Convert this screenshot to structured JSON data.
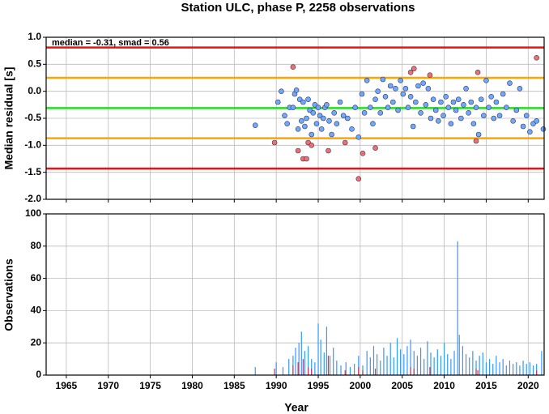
{
  "chart_data": [
    {
      "type": "scatter",
      "title": "Station ULC, phase P, 2258 observations",
      "annotation": "median = -0.31, smad = 0.56",
      "y_label": "Median residual [s]",
      "xlim": [
        1962.6,
        2021.9
      ],
      "xticks": [
        1965,
        1970,
        1975,
        1980,
        1985,
        1990,
        1995,
        2000,
        2005,
        2010,
        2015,
        2020
      ],
      "ylim": [
        -2,
        1
      ],
      "yticks": [
        {
          "value": 1,
          "label": "1.0"
        },
        {
          "value": 0.5,
          "label": "0.5"
        },
        {
          "value": 0,
          "label": "0.0"
        },
        {
          "value": -0.5,
          "label": "-0.5"
        },
        {
          "value": -1,
          "label": "-1.0"
        },
        {
          "value": -1.5,
          "label": "-1.5"
        },
        {
          "value": -2,
          "label": "-2.0"
        }
      ],
      "grid": true,
      "hlines": [
        {
          "value": 0.81,
          "color": "#ee1111"
        },
        {
          "value": 0.25,
          "color": "#ffa500"
        },
        {
          "value": -0.31,
          "color": "#22dd22"
        },
        {
          "value": -0.87,
          "color": "#ffa500"
        },
        {
          "value": -1.43,
          "color": "#ee1111"
        }
      ],
      "series": [
        {
          "color": "#6fa8ff",
          "x": [
            1987.5,
            1990.2,
            1990.6,
            1991.0,
            1991.3,
            1991.6,
            1992.0,
            1992.2,
            1992.4,
            1992.6,
            1992.8,
            1993.0,
            1993.2,
            1993.4,
            1993.6,
            1993.8,
            1994.0,
            1994.2,
            1994.4,
            1994.6,
            1994.8,
            1995.0,
            1995.2,
            1995.4,
            1995.6,
            1995.8,
            1996.0,
            1996.3,
            1996.6,
            1996.9,
            1997.2,
            1997.6,
            1998.0,
            1998.5,
            1999.0,
            1999.4,
            1999.8,
            2000.2,
            2000.5,
            2000.8,
            2001.2,
            2001.5,
            2001.8,
            2002.1,
            2002.4,
            2002.7,
            2003.0,
            2003.3,
            2003.6,
            2003.9,
            2004.2,
            2004.5,
            2004.8,
            2005.1,
            2005.4,
            2005.7,
            2006.0,
            2006.3,
            2006.6,
            2006.9,
            2007.2,
            2007.5,
            2007.8,
            2008.1,
            2008.4,
            2008.7,
            2009.0,
            2009.3,
            2009.6,
            2009.9,
            2010.2,
            2010.5,
            2010.8,
            2011.1,
            2011.4,
            2011.7,
            2012.0,
            2012.3,
            2012.6,
            2012.9,
            2013.2,
            2013.5,
            2013.8,
            2014.1,
            2014.4,
            2014.7,
            2015.0,
            2015.3,
            2015.6,
            2015.9,
            2016.2,
            2016.6,
            2017.0,
            2017.4,
            2017.8,
            2018.2,
            2018.6,
            2019.0,
            2019.4,
            2019.8,
            2020.2,
            2020.6,
            2021.0,
            2021.8
          ],
          "values": [
            -0.63,
            -0.2,
            0.0,
            -0.45,
            -0.6,
            -0.3,
            -0.3,
            -0.05,
            0.02,
            -0.7,
            -0.15,
            -0.55,
            -0.2,
            -0.65,
            -0.5,
            -0.15,
            -0.35,
            -0.8,
            -0.4,
            -0.25,
            -0.6,
            -0.3,
            -0.45,
            -0.7,
            -0.5,
            -0.3,
            -0.25,
            -0.55,
            -0.8,
            -0.4,
            -0.6,
            -0.2,
            -0.45,
            -0.5,
            -0.7,
            -0.3,
            -0.85,
            -0.05,
            -0.4,
            0.2,
            -0.3,
            -0.6,
            -0.15,
            0.0,
            -0.4,
            0.22,
            -0.1,
            -0.3,
            0.1,
            -0.2,
            0.05,
            -0.35,
            0.2,
            -0.05,
            0.05,
            -0.3,
            -0.1,
            -0.65,
            -0.2,
            0.1,
            -0.4,
            0.15,
            -0.25,
            0.05,
            -0.5,
            -0.15,
            -0.35,
            -0.55,
            -0.2,
            -0.45,
            -0.1,
            -0.3,
            -0.6,
            -0.2,
            -0.35,
            -0.15,
            -0.5,
            -0.25,
            0.05,
            -0.4,
            -0.2,
            -0.6,
            -0.3,
            -0.8,
            -0.15,
            -0.45,
            0.2,
            -0.3,
            -0.1,
            -0.5,
            -0.2,
            -0.45,
            -0.05,
            -0.3,
            0.15,
            -0.55,
            -0.35,
            0.05,
            -0.65,
            -0.45,
            -0.75,
            -0.6,
            -0.55,
            -0.7
          ]
        },
        {
          "color": "#f07070",
          "x": [
            1989.8,
            1992.0,
            1992.6,
            1993.2,
            1993.6,
            1993.8,
            1994.2,
            1996.2,
            1998.2,
            1999.8,
            2000.3,
            2001.8,
            2006.0,
            2006.4,
            2008.3,
            2013.8,
            2014.0,
            2021.0
          ],
          "values": [
            -0.95,
            0.45,
            -1.1,
            -1.25,
            -1.25,
            -0.95,
            -1.0,
            -1.1,
            -0.95,
            -1.62,
            -1.15,
            -1.05,
            0.35,
            0.42,
            0.3,
            -0.92,
            0.35,
            0.62
          ]
        }
      ]
    },
    {
      "type": "bar",
      "y_label": "Observations",
      "x_label": "Year",
      "xlim": [
        1962.6,
        2021.9
      ],
      "xticks": [
        1965,
        1970,
        1975,
        1980,
        1985,
        1990,
        1995,
        2000,
        2005,
        2010,
        2015,
        2020
      ],
      "ylim": [
        0,
        100
      ],
      "yticks": [
        0,
        20,
        40,
        60,
        80,
        100
      ],
      "grid": true,
      "series": [
        {
          "color": "#3399ff",
          "x": [
            1987.5,
            1990.0,
            1990.8,
            1991.5,
            1992.0,
            1992.3,
            1992.7,
            1993.0,
            1993.4,
            1993.8,
            1994.2,
            1994.6,
            1995.0,
            1995.3,
            1995.7,
            1996.0,
            1996.4,
            1996.8,
            1997.2,
            1997.7,
            1998.3,
            1998.8,
            1999.3,
            1999.8,
            2000.3,
            2000.8,
            2001.2,
            2001.6,
            2002.0,
            2002.4,
            2002.8,
            2003.2,
            2003.6,
            2004.0,
            2004.4,
            2004.8,
            2005.2,
            2005.6,
            2006.0,
            2006.4,
            2006.8,
            2007.2,
            2007.6,
            2008.0,
            2008.4,
            2008.8,
            2009.2,
            2009.6,
            2010.0,
            2010.4,
            2010.8,
            2011.2,
            2011.6,
            2011.8,
            2012.2,
            2012.6,
            2013.0,
            2013.4,
            2013.8,
            2014.2,
            2014.6,
            2015.0,
            2015.4,
            2015.8,
            2016.2,
            2016.6,
            2017.0,
            2017.4,
            2017.8,
            2018.2,
            2018.6,
            2019.0,
            2019.4,
            2019.8,
            2020.2,
            2020.6,
            2021.0,
            2021.6
          ],
          "values": [
            5,
            8,
            5,
            10,
            12,
            17,
            20,
            27,
            15,
            18,
            10,
            8,
            32,
            22,
            14,
            30,
            12,
            17,
            9,
            6,
            8,
            5,
            7,
            12,
            6,
            15,
            11,
            18,
            13,
            9,
            17,
            12,
            20,
            11,
            23,
            16,
            13,
            18,
            22,
            15,
            12,
            17,
            10,
            21,
            14,
            11,
            16,
            12,
            20,
            13,
            10,
            15,
            83,
            25,
            18,
            13,
            11,
            15,
            9,
            12,
            14,
            8,
            10,
            7,
            12,
            8,
            10,
            6,
            9,
            7,
            8,
            6,
            9,
            7,
            8,
            6,
            7,
            15
          ]
        },
        {
          "color": "#cc3355",
          "x": [
            1989.8,
            1992.0,
            1992.6,
            1993.2,
            1993.8,
            1994.2,
            1996.2,
            1998.2,
            1999.8,
            2000.3,
            2001.8,
            2006.0,
            2006.4,
            2008.3,
            2013.8,
            2014.0,
            2021.0
          ],
          "values": [
            4,
            6,
            8,
            10,
            5,
            4,
            12,
            3,
            5,
            3,
            4,
            5,
            4,
            5,
            4,
            3,
            3
          ]
        }
      ]
    }
  ]
}
